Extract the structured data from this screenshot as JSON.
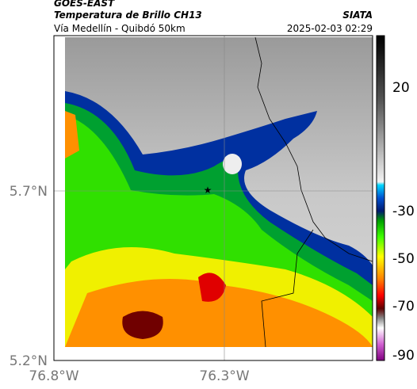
{
  "header": {
    "title": "GOES-EAST",
    "subtitle": "Temperatura de Brillo CH13",
    "location": "Vía Medellín - Quibdó 50km",
    "source": "SIATA",
    "datetime": "2025-02-03 02:29"
  },
  "map": {
    "lat_labels": [
      "5.7°N",
      "5.2°N"
    ],
    "lon_labels": [
      "76.8°W",
      "76.3°W"
    ]
  },
  "colorbar": {
    "ticks": [
      "20",
      "-30",
      "-50",
      "-70",
      "-90"
    ]
  }
}
